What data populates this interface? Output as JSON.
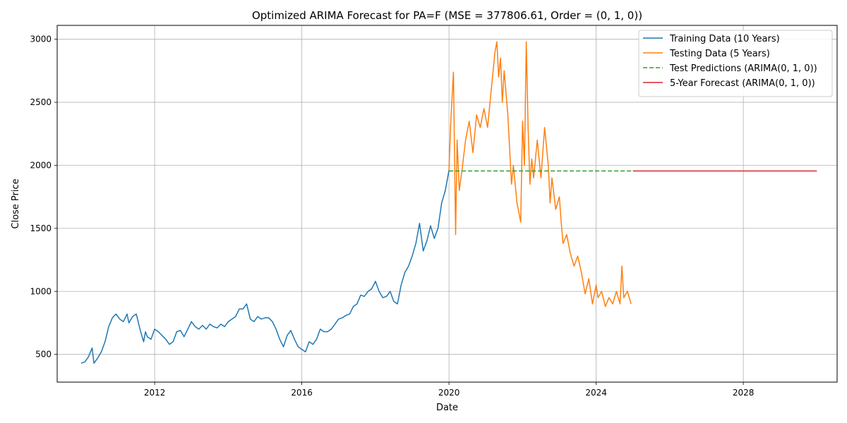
{
  "chart_data": {
    "type": "line",
    "title": "Optimized ARIMA Forecast for PA=F (MSE = 377806.61, Order = (0, 1, 0))",
    "xlabel": "Date",
    "ylabel": "Close Price",
    "xlim": [
      2009.35,
      2030.55
    ],
    "ylim": [
      280,
      3110
    ],
    "x_ticks": [
      2012,
      2016,
      2020,
      2024,
      2028
    ],
    "y_ticks": [
      500,
      1000,
      1500,
      2000,
      2500,
      3000
    ],
    "grid": true,
    "legend_position": "top-right",
    "series": [
      {
        "name": "Training Data (10 Years)",
        "color": "#1f77b4",
        "style": "solid",
        "x": [
          2010.0,
          2010.1,
          2010.2,
          2010.3,
          2010.35,
          2010.45,
          2010.55,
          2010.65,
          2010.75,
          2010.85,
          2010.95,
          2011.05,
          2011.15,
          2011.25,
          2011.3,
          2011.4,
          2011.5,
          2011.6,
          2011.7,
          2011.75,
          2011.8,
          2011.9,
          2012.0,
          2012.1,
          2012.2,
          2012.3,
          2012.4,
          2012.5,
          2012.6,
          2012.7,
          2012.8,
          2012.9,
          2013.0,
          2013.1,
          2013.2,
          2013.3,
          2013.4,
          2013.5,
          2013.6,
          2013.7,
          2013.8,
          2013.9,
          2014.0,
          2014.1,
          2014.2,
          2014.3,
          2014.4,
          2014.5,
          2014.6,
          2014.7,
          2014.8,
          2014.9,
          2015.0,
          2015.1,
          2015.2,
          2015.3,
          2015.4,
          2015.5,
          2015.6,
          2015.7,
          2015.8,
          2015.9,
          2016.0,
          2016.1,
          2016.2,
          2016.3,
          2016.4,
          2016.5,
          2016.6,
          2016.7,
          2016.8,
          2016.9,
          2017.0,
          2017.1,
          2017.2,
          2017.3,
          2017.4,
          2017.5,
          2017.6,
          2017.7,
          2017.8,
          2017.9,
          2018.0,
          2018.1,
          2018.2,
          2018.3,
          2018.4,
          2018.5,
          2018.6,
          2018.7,
          2018.8,
          2018.9,
          2019.0,
          2019.1,
          2019.2,
          2019.3,
          2019.4,
          2019.5,
          2019.6,
          2019.7,
          2019.8,
          2019.9,
          2020.0
        ],
        "y": [
          430,
          440,
          480,
          550,
          430,
          470,
          520,
          600,
          720,
          790,
          820,
          780,
          760,
          820,
          750,
          800,
          820,
          700,
          600,
          680,
          640,
          620,
          700,
          680,
          650,
          620,
          580,
          600,
          680,
          690,
          640,
          700,
          760,
          720,
          700,
          730,
          700,
          740,
          720,
          710,
          740,
          720,
          760,
          780,
          800,
          860,
          860,
          900,
          780,
          760,
          800,
          780,
          790,
          790,
          760,
          700,
          620,
          560,
          650,
          690,
          620,
          560,
          540,
          520,
          600,
          580,
          620,
          700,
          680,
          680,
          700,
          740,
          780,
          790,
          810,
          820,
          880,
          900,
          970,
          960,
          1000,
          1020,
          1080,
          1000,
          950,
          960,
          1000,
          920,
          900,
          1050,
          1150,
          1200,
          1280,
          1380,
          1540,
          1320,
          1400,
          1520,
          1420,
          1500,
          1700,
          1800,
          1960
        ]
      },
      {
        "name": "Testing Data (5 Years)",
        "color": "#ff7f0e",
        "style": "solid",
        "x": [
          2020.0,
          2020.05,
          2020.12,
          2020.18,
          2020.22,
          2020.28,
          2020.35,
          2020.45,
          2020.55,
          2020.65,
          2020.75,
          2020.85,
          2020.95,
          2021.05,
          2021.15,
          2021.25,
          2021.3,
          2021.35,
          2021.4,
          2021.45,
          2021.5,
          2021.6,
          2021.7,
          2021.75,
          2021.85,
          2021.95,
          2022.0,
          2022.05,
          2022.1,
          2022.15,
          2022.2,
          2022.25,
          2022.3,
          2022.4,
          2022.5,
          2022.6,
          2022.7,
          2022.75,
          2022.8,
          2022.9,
          2023.0,
          2023.05,
          2023.1,
          2023.2,
          2023.3,
          2023.4,
          2023.5,
          2023.6,
          2023.7,
          2023.8,
          2023.9,
          2024.0,
          2024.05,
          2024.15,
          2024.25,
          2024.35,
          2024.45,
          2024.55,
          2024.65,
          2024.7,
          2024.75,
          2024.85,
          2024.95
        ],
        "y": [
          1960,
          2350,
          2740,
          1450,
          2200,
          1800,
          1950,
          2200,
          2350,
          2100,
          2400,
          2300,
          2450,
          2300,
          2600,
          2900,
          2980,
          2700,
          2850,
          2500,
          2750,
          2400,
          1850,
          2000,
          1700,
          1550,
          2350,
          2000,
          2980,
          2300,
          1850,
          2050,
          1900,
          2200,
          1900,
          2300,
          2000,
          1700,
          1900,
          1650,
          1750,
          1550,
          1380,
          1450,
          1300,
          1200,
          1280,
          1150,
          980,
          1100,
          900,
          1050,
          950,
          1000,
          880,
          950,
          900,
          1000,
          900,
          1200,
          950,
          1000,
          900
        ]
      },
      {
        "name": "Test Predictions (ARIMA(0, 1, 0))",
        "color": "#2ca02c",
        "style": "dashed",
        "x": [
          2020.0,
          2025.0
        ],
        "y": [
          1955,
          1955
        ]
      },
      {
        "name": "5-Year Forecast (ARIMA(0, 1, 0))",
        "color": "#d62728",
        "style": "solid",
        "x": [
          2025.0,
          2030.0
        ],
        "y": [
          1955,
          1955
        ]
      }
    ]
  }
}
